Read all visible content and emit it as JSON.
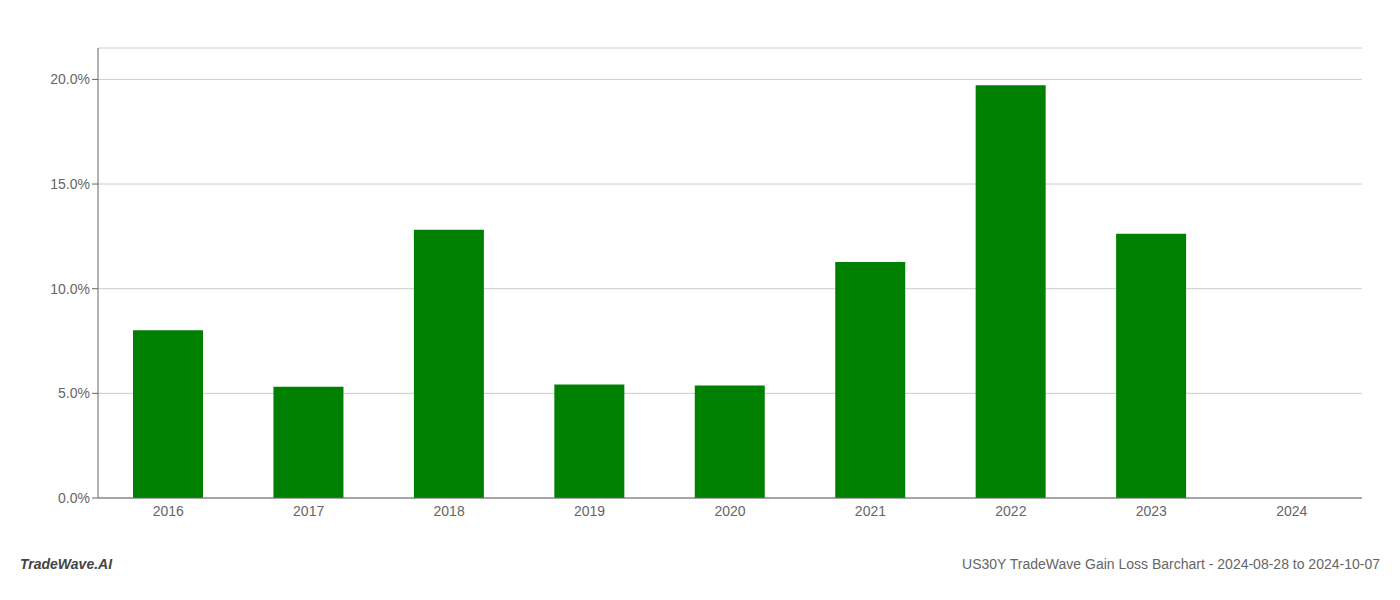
{
  "chart_data": {
    "type": "bar",
    "categories": [
      "2016",
      "2017",
      "2018",
      "2019",
      "2020",
      "2021",
      "2022",
      "2023",
      "2024"
    ],
    "values": [
      8.02,
      5.32,
      12.82,
      5.42,
      5.38,
      11.28,
      19.72,
      12.62,
      0.0
    ],
    "color": "#008000",
    "ylim": [
      0,
      21.5
    ],
    "yticks": [
      {
        "value": 0.0,
        "label": "0.0%"
      },
      {
        "value": 5.0,
        "label": "5.0%"
      },
      {
        "value": 10.0,
        "label": "10.0%"
      },
      {
        "value": 15.0,
        "label": "15.0%"
      },
      {
        "value": 20.0,
        "label": "20.0%"
      }
    ],
    "grid": true,
    "annotations": [
      "TradeWave.AI",
      "US30Y TradeWave Gain Loss Barchart - 2024-08-28 to 2024-10-07"
    ]
  }
}
